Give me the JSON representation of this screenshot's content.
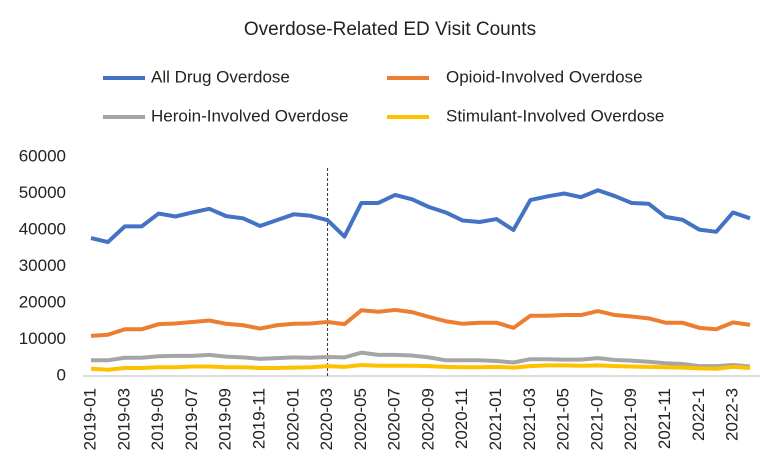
{
  "chart_data": {
    "type": "line",
    "title": "Overdose-Related ED Visit Counts",
    "categories": [
      "2019-01",
      null,
      "2019-03",
      null,
      "2019-05",
      null,
      "2019-07",
      null,
      "2019-09",
      null,
      "2019-11",
      null,
      "2020-01",
      null,
      "2020-03",
      null,
      "2020-05",
      null,
      "2020-07",
      null,
      "2020-09",
      null,
      "2020-11",
      null,
      "2021-01",
      null,
      "2021-03",
      null,
      "2021-05",
      null,
      "2021-07",
      null,
      "2021-09",
      null,
      "2021-11",
      null,
      "2022-1",
      null,
      "2022-3",
      null
    ],
    "series": [
      {
        "name": "All Drug Overdose",
        "color": "#4472c4",
        "values": [
          37800,
          36700,
          41000,
          41000,
          44500,
          43700,
          44800,
          45800,
          43800,
          43200,
          41100,
          42700,
          44300,
          43900,
          42700,
          38200,
          47400,
          47400,
          49600,
          48400,
          46300,
          44800,
          42600,
          42200,
          43000,
          40000,
          48200,
          49200,
          50000,
          49000,
          50900,
          49300,
          47400,
          47200,
          43600,
          42800,
          40100,
          39500,
          44800,
          43200
        ]
      },
      {
        "name": "Opioid-Involved Overdose",
        "color": "#ed7d31",
        "values": [
          11000,
          11300,
          12800,
          12800,
          14200,
          14400,
          14800,
          15200,
          14300,
          13900,
          13000,
          13900,
          14300,
          14400,
          14800,
          14200,
          18000,
          17600,
          18100,
          17500,
          16200,
          15000,
          14300,
          14600,
          14600,
          13200,
          16500,
          16500,
          16700,
          16700,
          17800,
          16700,
          16300,
          15800,
          14600,
          14600,
          13200,
          12800,
          14700,
          14000
        ]
      },
      {
        "name": "Heroin-Involved Overdose",
        "color": "#a5a5a5",
        "values": [
          4300,
          4300,
          5000,
          5000,
          5400,
          5500,
          5500,
          5800,
          5300,
          5100,
          4700,
          4900,
          5100,
          5000,
          5200,
          5100,
          6400,
          5800,
          5800,
          5600,
          5100,
          4300,
          4300,
          4300,
          4100,
          3700,
          4600,
          4600,
          4500,
          4500,
          4900,
          4400,
          4200,
          3900,
          3500,
          3300,
          2700,
          2700,
          3000,
          2600
        ]
      },
      {
        "name": "Stimulant-Involved Overdose",
        "color": "#ffc000",
        "values": [
          2000,
          1700,
          2200,
          2200,
          2400,
          2400,
          2600,
          2600,
          2400,
          2400,
          2200,
          2200,
          2300,
          2400,
          2700,
          2500,
          3000,
          2800,
          2800,
          2800,
          2700,
          2500,
          2400,
          2400,
          2500,
          2300,
          2700,
          2900,
          2900,
          2800,
          2900,
          2700,
          2600,
          2500,
          2400,
          2300,
          2100,
          2000,
          2500,
          2200
        ]
      }
    ],
    "ylim": [
      0,
      60000
    ],
    "yticks": [
      0,
      10000,
      20000,
      30000,
      40000,
      50000,
      60000
    ],
    "grid": false
  }
}
